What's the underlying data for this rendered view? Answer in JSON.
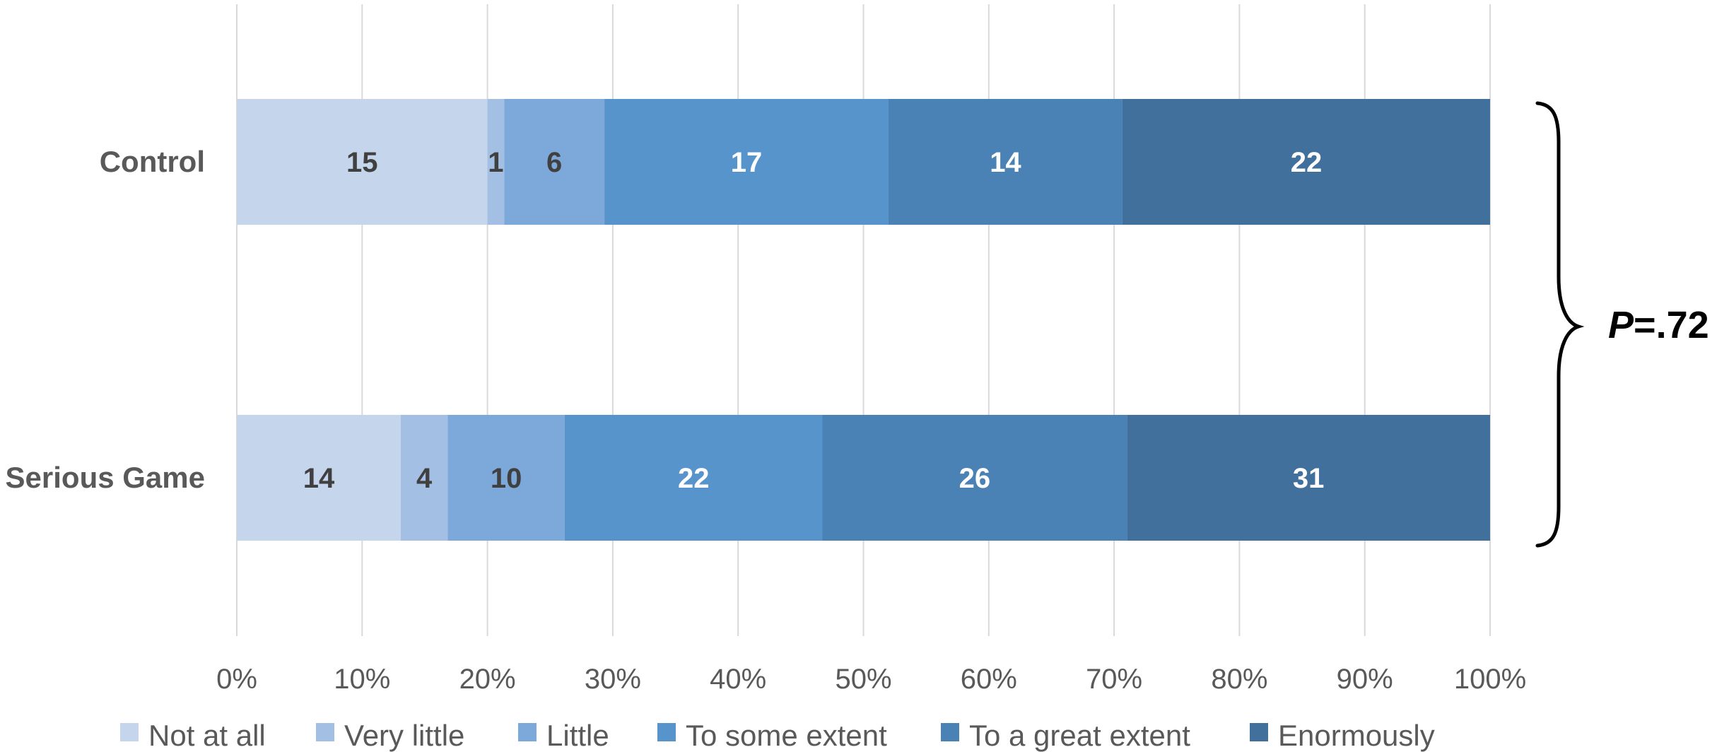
{
  "chart_data": {
    "type": "bar",
    "orientation": "horizontal",
    "stacked": "percent",
    "categories": [
      "Control",
      "Serious Game"
    ],
    "series": [
      {
        "name": "Not at all",
        "values": [
          15,
          14
        ],
        "color": "#c5d5eb",
        "label_color": "#404040"
      },
      {
        "name": "Very little",
        "values": [
          1,
          4
        ],
        "color": "#a3bfe3",
        "label_color": "#404040"
      },
      {
        "name": "Little",
        "values": [
          6,
          10
        ],
        "color": "#7da9da",
        "label_color": "#404040"
      },
      {
        "name": "To some extent",
        "values": [
          17,
          22
        ],
        "color": "#5694cb",
        "label_color": "#ffffff"
      },
      {
        "name": "To a great extent",
        "values": [
          14,
          26
        ],
        "color": "#4a82b5",
        "label_color": "#ffffff"
      },
      {
        "name": "Enormously",
        "values": [
          22,
          31
        ],
        "color": "#41709d",
        "label_color": "#ffffff"
      }
    ],
    "xlim": [
      0,
      100
    ],
    "x_ticks": [
      "0%",
      "10%",
      "20%",
      "30%",
      "40%",
      "50%",
      "60%",
      "70%",
      "80%",
      "90%",
      "100%"
    ],
    "grid": "vertical",
    "legend": "bottom",
    "title": "",
    "xlabel": "",
    "ylabel": "",
    "annotation": {
      "bracket": "right",
      "p_letter": "P",
      "p_rest": "=.72"
    }
  }
}
